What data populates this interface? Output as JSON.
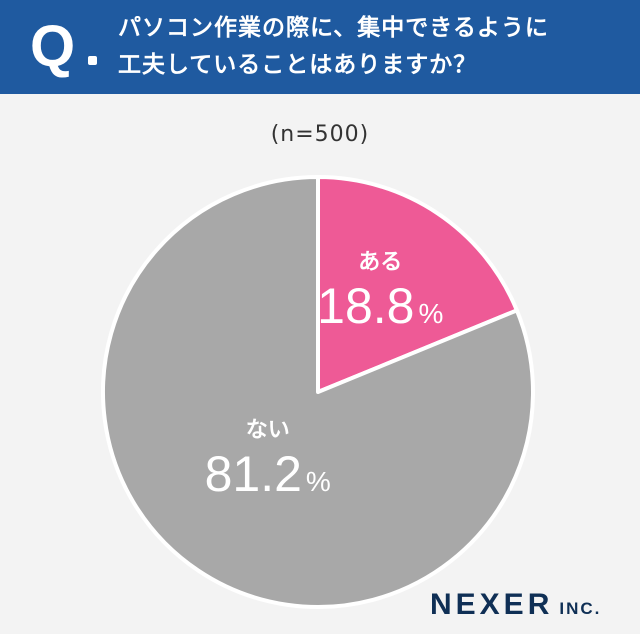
{
  "header": {
    "q_mark": "Q",
    "question_lines": [
      "パソコン作業の際に、集中できるように",
      "工夫していることはありますか？"
    ]
  },
  "sample_size": "(n=500)",
  "chart_data": {
    "type": "pie",
    "title": "パソコン作業の際に、集中できるように工夫していることはありますか？",
    "slices": [
      {
        "label": "ある",
        "value": 18.8,
        "display": "18.8",
        "unit": "%",
        "color": "#ee5a96"
      },
      {
        "label": "ない",
        "value": 81.2,
        "display": "81.2",
        "unit": "%",
        "color": "#a8a8a8"
      }
    ],
    "legend": "none"
  },
  "footer": {
    "brand": "NEXER",
    "suffix": "INC."
  }
}
